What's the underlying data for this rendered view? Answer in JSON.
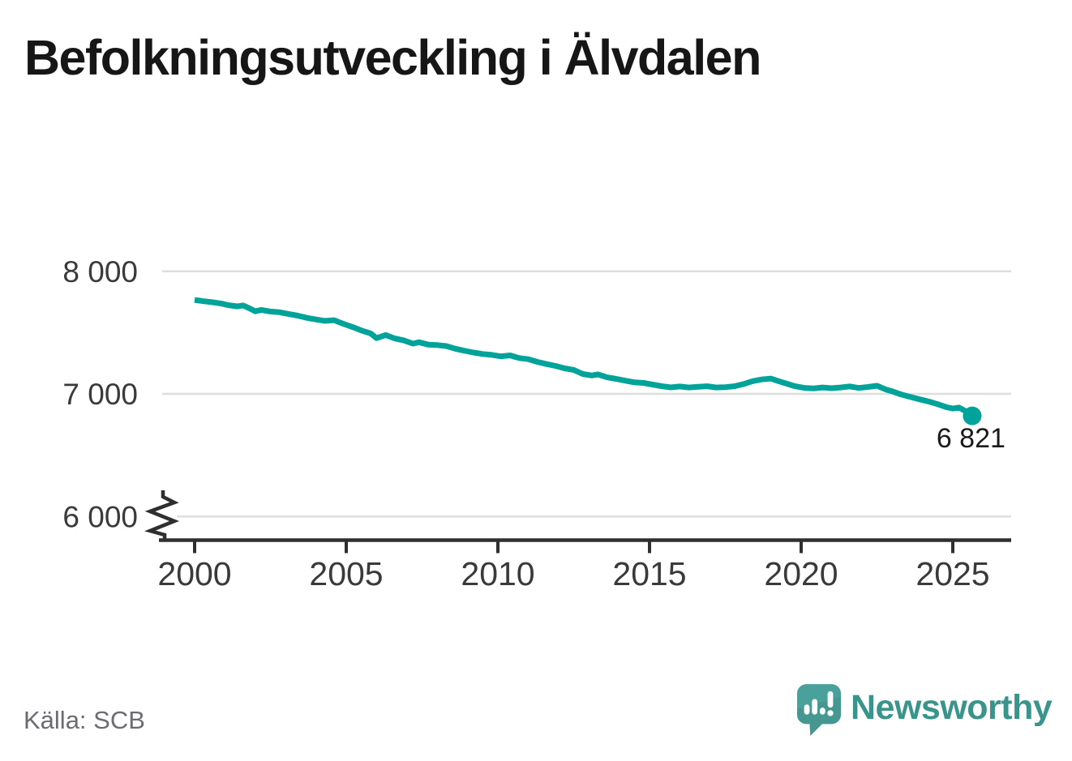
{
  "title": "Befolkningsutveckling i Älvdalen",
  "footer": {
    "source": "Källa: SCB",
    "brand": "Newsworthy"
  },
  "colors": {
    "line": "#00a39a",
    "grid": "#dedede",
    "axis": "#2f2f2f",
    "tick_text": "#3a3a3a",
    "annotation_text": "#1a1a1a",
    "title_text": "#161616",
    "source_text": "#6b6b73",
    "brand_teal": "#39948c",
    "logo_bubble": "#4aa09b",
    "logo_shade": "#3f8d86"
  },
  "chart_data": {
    "type": "line",
    "title": "Befolkningsutveckling i Älvdalen",
    "xlabel": "",
    "ylabel": "",
    "xlim": [
      1998.9,
      2026.9
    ],
    "ylim": [
      6000,
      8000
    ],
    "y_axis_break": true,
    "grid": "horizontal",
    "legend": "none",
    "yticks": [
      {
        "value": 6000,
        "label": "6 000"
      },
      {
        "value": 7000,
        "label": "7 000"
      },
      {
        "value": 8000,
        "label": "8 000"
      }
    ],
    "xticks": [
      {
        "value": 2000,
        "label": "2000"
      },
      {
        "value": 2005,
        "label": "2005"
      },
      {
        "value": 2010,
        "label": "2010"
      },
      {
        "value": 2015,
        "label": "2015"
      },
      {
        "value": 2020,
        "label": "2020"
      },
      {
        "value": 2025,
        "label": "2025"
      }
    ],
    "series": [
      {
        "name": "Befolkning i Älvdalen",
        "color": "#00a39a",
        "points": [
          [
            2000.0,
            7766
          ],
          [
            2000.3,
            7756
          ],
          [
            2000.6,
            7747
          ],
          [
            2000.9,
            7736
          ],
          [
            2001.1,
            7724
          ],
          [
            2001.4,
            7714
          ],
          [
            2001.6,
            7721
          ],
          [
            2001.8,
            7699
          ],
          [
            2002.0,
            7674
          ],
          [
            2002.2,
            7685
          ],
          [
            2002.5,
            7672
          ],
          [
            2002.8,
            7666
          ],
          [
            2003.1,
            7652
          ],
          [
            2003.4,
            7638
          ],
          [
            2003.7,
            7620
          ],
          [
            2004.0,
            7607
          ],
          [
            2004.3,
            7596
          ],
          [
            2004.6,
            7601
          ],
          [
            2004.9,
            7572
          ],
          [
            2005.2,
            7546
          ],
          [
            2005.5,
            7517
          ],
          [
            2005.8,
            7494
          ],
          [
            2006.0,
            7455
          ],
          [
            2006.3,
            7480
          ],
          [
            2006.6,
            7452
          ],
          [
            2006.9,
            7436
          ],
          [
            2007.2,
            7410
          ],
          [
            2007.4,
            7421
          ],
          [
            2007.7,
            7402
          ],
          [
            2008.0,
            7398
          ],
          [
            2008.3,
            7390
          ],
          [
            2008.6,
            7368
          ],
          [
            2008.9,
            7352
          ],
          [
            2009.2,
            7337
          ],
          [
            2009.5,
            7325
          ],
          [
            2009.8,
            7318
          ],
          [
            2010.1,
            7306
          ],
          [
            2010.4,
            7314
          ],
          [
            2010.7,
            7292
          ],
          [
            2011.0,
            7283
          ],
          [
            2011.3,
            7261
          ],
          [
            2011.6,
            7243
          ],
          [
            2011.9,
            7228
          ],
          [
            2012.2,
            7208
          ],
          [
            2012.5,
            7196
          ],
          [
            2012.8,
            7162
          ],
          [
            2013.1,
            7150
          ],
          [
            2013.3,
            7159
          ],
          [
            2013.6,
            7135
          ],
          [
            2013.9,
            7122
          ],
          [
            2014.2,
            7108
          ],
          [
            2014.5,
            7094
          ],
          [
            2014.8,
            7089
          ],
          [
            2015.1,
            7076
          ],
          [
            2015.4,
            7063
          ],
          [
            2015.7,
            7053
          ],
          [
            2016.0,
            7060
          ],
          [
            2016.3,
            7052
          ],
          [
            2016.6,
            7058
          ],
          [
            2016.9,
            7062
          ],
          [
            2017.2,
            7052
          ],
          [
            2017.5,
            7055
          ],
          [
            2017.8,
            7062
          ],
          [
            2018.1,
            7080
          ],
          [
            2018.4,
            7104
          ],
          [
            2018.7,
            7118
          ],
          [
            2019.0,
            7125
          ],
          [
            2019.2,
            7108
          ],
          [
            2019.5,
            7085
          ],
          [
            2019.8,
            7062
          ],
          [
            2020.1,
            7049
          ],
          [
            2020.4,
            7044
          ],
          [
            2020.7,
            7052
          ],
          [
            2021.0,
            7046
          ],
          [
            2021.3,
            7052
          ],
          [
            2021.6,
            7061
          ],
          [
            2021.9,
            7048
          ],
          [
            2022.2,
            7056
          ],
          [
            2022.5,
            7066
          ],
          [
            2022.8,
            7035
          ],
          [
            2023.0,
            7021
          ],
          [
            2023.3,
            6995
          ],
          [
            2023.6,
            6975
          ],
          [
            2023.9,
            6956
          ],
          [
            2024.2,
            6938
          ],
          [
            2024.5,
            6916
          ],
          [
            2024.8,
            6891
          ],
          [
            2025.0,
            6880
          ],
          [
            2025.2,
            6888
          ],
          [
            2025.45,
            6856
          ],
          [
            2025.64,
            6821
          ]
        ]
      }
    ],
    "end_annotation": {
      "label": "6 821",
      "value": 6821,
      "year": 2025.64
    }
  }
}
